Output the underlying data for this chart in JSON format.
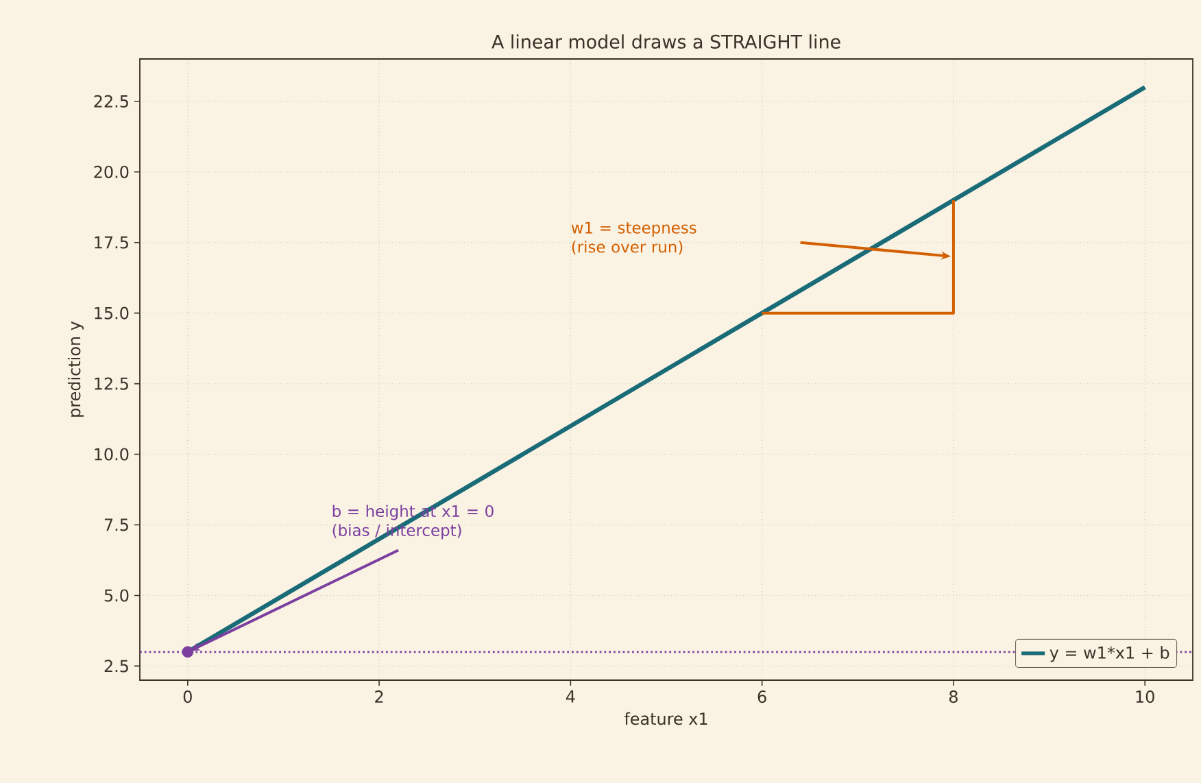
{
  "chart_data": {
    "type": "line",
    "title": "A linear model draws a STRAIGHT line",
    "xlabel": "feature x1",
    "ylabel": "prediction y",
    "series": [
      {
        "name": "y = w1*x1 + b",
        "color": "#1a6b78",
        "x": [
          0,
          10
        ],
        "values": [
          3,
          23
        ]
      },
      {
        "color": "#d35f00",
        "x": [
          6,
          8,
          8
        ],
        "values": [
          15,
          15,
          19
        ]
      },
      {
        "type": "scatter",
        "marker": "circle",
        "color": "#7b3fa0",
        "x": [
          0
        ],
        "values": [
          3
        ]
      }
    ],
    "ref_lines": [
      {
        "axis": "y",
        "value": 3,
        "color": "#7b3fa0",
        "line_style": "dotted"
      }
    ],
    "annotations": [
      "w1 = steepness (rise over run)",
      {
        "text": "b = height at x1 = 0 (bias / intercept)",
        "x": 0,
        "y": 3
      }
    ],
    "xlim": [
      -0.5,
      10.5
    ],
    "ylim": [
      2.0,
      24.0
    ],
    "xticks": [
      0,
      2,
      4,
      6,
      8,
      10
    ],
    "yticks": [
      {
        "value": 2.5,
        "label": "2.5"
      },
      {
        "value": 5,
        "label": "5.0"
      },
      {
        "value": 7.5,
        "label": "7.5"
      },
      {
        "value": 10,
        "label": "10.0"
      },
      {
        "value": 12.5,
        "label": "12.5"
      },
      {
        "value": 15,
        "label": "15.0"
      },
      {
        "value": 17.5,
        "label": "17.5"
      },
      {
        "value": 20,
        "label": "20.0"
      },
      {
        "value": 22.5,
        "label": "22.5"
      }
    ],
    "grid": true,
    "legend": "bottom right"
  }
}
